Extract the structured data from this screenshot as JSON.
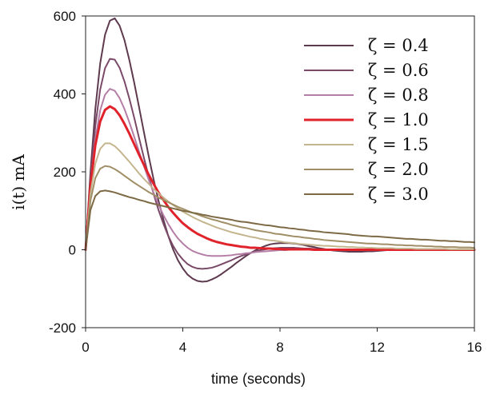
{
  "chart_data": {
    "type": "line",
    "title": "",
    "xlabel": "time (seconds)",
    "ylabel": "i(t) mA",
    "xlim": [
      0,
      16
    ],
    "ylim": [
      -200,
      600
    ],
    "x_ticks": [
      0,
      4,
      8,
      12,
      16
    ],
    "y_ticks": [
      -200,
      0,
      200,
      400,
      600
    ],
    "x_tick_labels": [
      "0",
      "4",
      "8",
      "12",
      "16"
    ],
    "y_tick_labels": [
      "-200",
      "0",
      "200",
      "400",
      "600"
    ],
    "grid": false,
    "legend_position": "top-right",
    "x": [
      0,
      0.2,
      0.4,
      0.6,
      0.8,
      1.0,
      1.2,
      1.4,
      1.6,
      1.8,
      2.0,
      2.2,
      2.4,
      2.6,
      2.8,
      3.0,
      3.2,
      3.4,
      3.6,
      3.8,
      4.0,
      4.2,
      4.4,
      4.6,
      4.8,
      5.0,
      5.2,
      5.4,
      5.6,
      5.8,
      6.0,
      6.2,
      6.4,
      6.6,
      6.8,
      7.0,
      7.2,
      7.4,
      7.6,
      7.8,
      8.0,
      8.2,
      8.4,
      8.6,
      8.8,
      9.0,
      9.2,
      9.4,
      9.6,
      9.8,
      10.0,
      10.2,
      10.4,
      10.6,
      10.8,
      11.0,
      11.2,
      11.4,
      11.6,
      11.8,
      12.0,
      12.2,
      12.4,
      12.6,
      12.8,
      13.0,
      13.2,
      13.4,
      13.6,
      13.8,
      14.0,
      14.2,
      14.4,
      14.6,
      14.8,
      15.0,
      15.2,
      15.4,
      15.6,
      15.8,
      16.0
    ],
    "series": [
      {
        "name": "ζ = 0.4",
        "color": "#5e3a4f",
        "width": 2,
        "values": [
          0,
          199,
          361,
          478,
          552,
          588,
          594,
          575,
          538,
          487,
          429,
          366,
          302,
          239,
          180,
          126,
          78,
          36,
          1,
          -27,
          -48,
          -64,
          -74,
          -80,
          -82,
          -81,
          -76,
          -70,
          -62,
          -53,
          -44,
          -34,
          -25,
          -16,
          -8,
          -1,
          5,
          10,
          14,
          16,
          17,
          17,
          17,
          16,
          14,
          12,
          9,
          7,
          4,
          2,
          0,
          -2,
          -3,
          -4,
          -5,
          -5,
          -5,
          -5,
          -4,
          -4,
          -3,
          -2,
          -1,
          0,
          0,
          1,
          1,
          1,
          1,
          1,
          1,
          1,
          1,
          1,
          1,
          1,
          0,
          0,
          0,
          0,
          0
        ]
      },
      {
        "name": "ζ = 0.6",
        "color": "#7a4a68",
        "width": 2,
        "values": [
          0,
          182,
          318,
          411,
          466,
          490,
          488,
          467,
          432,
          388,
          339,
          287,
          236,
          188,
          143,
          102,
          67,
          36,
          10,
          -10,
          -25,
          -37,
          -44,
          -48,
          -49,
          -48,
          -46,
          -42,
          -37,
          -32,
          -27,
          -21,
          -16,
          -12,
          -8,
          -4,
          -1,
          1,
          3,
          4,
          5,
          5,
          5,
          5,
          4,
          3,
          3,
          2,
          1,
          1,
          0,
          0,
          0,
          -1,
          -1,
          -1,
          -1,
          -1,
          -1,
          -1,
          0,
          0,
          0,
          0,
          0,
          0,
          0,
          0,
          0,
          0,
          0,
          0,
          0,
          0,
          0,
          0,
          0,
          0,
          0,
          0,
          0
        ]
      },
      {
        "name": "ζ = 0.8",
        "color": "#b57ea6",
        "width": 2,
        "values": [
          0,
          168,
          284,
          358,
          398,
          413,
          408,
          389,
          361,
          327,
          290,
          252,
          215,
          179,
          146,
          116,
          89,
          66,
          46,
          29,
          16,
          5,
          -3,
          -8,
          -12,
          -15,
          -16,
          -16,
          -16,
          -15,
          -14,
          -12,
          -11,
          -9,
          -8,
          -6,
          -5,
          -4,
          -3,
          -2,
          -1,
          -1,
          0,
          0,
          0,
          0,
          0,
          0,
          0,
          0,
          0,
          0,
          0,
          0,
          0,
          0,
          0,
          0,
          0,
          0,
          0,
          0,
          0,
          0,
          0,
          0,
          0,
          0,
          0,
          0,
          0,
          0,
          0,
          0,
          0,
          0,
          0,
          0,
          0,
          0,
          0
        ]
      },
      {
        "name": "ζ = 1.0",
        "color": "#e0232b",
        "width": 3,
        "values": [
          0,
          164,
          268,
          329,
          359,
          368,
          361,
          345,
          323,
          298,
          271,
          244,
          218,
          192,
          169,
          147,
          128,
          110,
          95,
          81,
          68,
          58,
          49,
          41,
          35,
          29,
          24,
          20,
          17,
          14,
          12,
          10,
          8,
          7,
          5,
          5,
          4,
          3,
          3,
          2,
          2,
          1,
          1,
          1,
          1,
          1,
          1,
          0,
          0,
          0,
          0,
          0,
          0,
          0,
          0,
          0,
          0,
          0,
          0,
          0,
          0,
          0,
          0,
          0,
          0,
          0,
          0,
          0,
          0,
          0,
          0,
          0,
          0,
          0,
          0,
          0,
          0,
          0,
          0,
          0,
          0
        ]
      },
      {
        "name": "ζ = 1.5",
        "color": "#c4b58e",
        "width": 2,
        "values": [
          0,
          144,
          221,
          259,
          273,
          273,
          266,
          254,
          240,
          226,
          211,
          196,
          182,
          169,
          156,
          145,
          134,
          124,
          115,
          106,
          98,
          91,
          84,
          78,
          72,
          67,
          62,
          57,
          53,
          49,
          45,
          42,
          39,
          36,
          33,
          31,
          28,
          26,
          24,
          23,
          21,
          19,
          18,
          17,
          15,
          14,
          13,
          12,
          11,
          10,
          10,
          9,
          8,
          8,
          7,
          7,
          6,
          6,
          5,
          5,
          4,
          4,
          4,
          4,
          3,
          3,
          3,
          3,
          2,
          2,
          2,
          2,
          2,
          2,
          2,
          1,
          1,
          1,
          1,
          1,
          1
        ]
      },
      {
        "name": "ζ = 2.0",
        "color": "#a08e66",
        "width": 2,
        "values": [
          0,
          126,
          184,
          208,
          215,
          213,
          207,
          199,
          190,
          181,
          172,
          164,
          156,
          148,
          141,
          134,
          128,
          122,
          116,
          110,
          105,
          100,
          95,
          91,
          86,
          82,
          78,
          75,
          71,
          68,
          64,
          61,
          58,
          56,
          53,
          50,
          48,
          46,
          44,
          41,
          40,
          38,
          36,
          34,
          33,
          31,
          30,
          28,
          27,
          25,
          24,
          23,
          22,
          21,
          20,
          19,
          18,
          17,
          16,
          16,
          15,
          14,
          14,
          13,
          12,
          12,
          11,
          11,
          10,
          10,
          9,
          9,
          8,
          8,
          7,
          7,
          7,
          6,
          6,
          6,
          5
        ]
      },
      {
        "name": "ζ = 3.0",
        "color": "#7d6a45",
        "width": 2,
        "values": [
          0,
          102,
          138,
          150,
          152,
          150,
          147,
          143,
          139,
          135,
          132,
          128,
          125,
          121,
          118,
          115,
          112,
          109,
          106,
          103,
          100,
          98,
          95,
          93,
          90,
          88,
          85,
          83,
          81,
          79,
          77,
          74,
          72,
          71,
          69,
          67,
          65,
          63,
          62,
          60,
          58,
          57,
          55,
          54,
          52,
          51,
          49,
          48,
          47,
          45,
          44,
          43,
          42,
          41,
          40,
          38,
          37,
          36,
          35,
          34,
          34,
          33,
          32,
          31,
          30,
          29,
          28,
          28,
          27,
          26,
          26,
          25,
          24,
          23,
          23,
          22,
          22,
          21,
          20,
          20,
          19
        ]
      }
    ]
  }
}
